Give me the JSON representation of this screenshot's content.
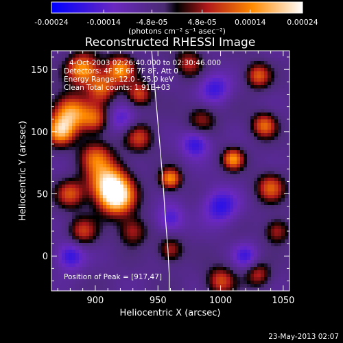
{
  "chart_data": {
    "type": "heatmap",
    "title": "Reconstructed RHESSI Image",
    "xlabel": "Heliocentric X (arcsec)",
    "ylabel": "Heliocentric Y (arcsec)",
    "xlim": [
      865,
      1055
    ],
    "ylim": [
      -28,
      165
    ],
    "x_ticks": [
      900,
      950,
      1000,
      1050
    ],
    "y_ticks": [
      0,
      50,
      100,
      150
    ],
    "colorbar": {
      "vmin": -0.00024,
      "vmax": 0.00024,
      "ticks": [
        "-0.00024",
        "-0.00014",
        "-4.8e-05",
        "4.8e-05",
        "0.00014",
        "0.00024"
      ],
      "tick_values": [
        -0.00024,
        -0.00014,
        -4.8e-05,
        4.8e-05,
        0.00014,
        0.00024
      ],
      "units_label": "(photons cm⁻² s⁻¹ asec⁻²)",
      "colormap": [
        "#0000ff",
        "#6a28c0",
        "#4a2a72",
        "#000000",
        "#b0181a",
        "#ff8a00",
        "#ffffff"
      ]
    },
    "annotations": {
      "time": "4-Oct-2003 02:26:40.000 to 02:30:46.000",
      "detectors": "Detectors: 4F 5F 6F 7F 8F, Att 0",
      "energy": "Energy Range: 12.0 - 25.0 keV",
      "method": "Clean    Total counts: 1.91E+03",
      "peak": "Position of Peak = [917,47]"
    },
    "limb": {
      "x": [
        945,
        948,
        951,
        954,
        956,
        958,
        959,
        959
      ],
      "y": [
        165,
        130,
        95,
        60,
        30,
        5,
        -15,
        -28
      ]
    },
    "sources": [
      {
        "x": 917,
        "y": 47,
        "amp": 1.0,
        "sigma": 10
      },
      {
        "x": 910,
        "y": 60,
        "amp": 0.85,
        "sigma": 11
      },
      {
        "x": 900,
        "y": 80,
        "amp": 0.55,
        "sigma": 9
      },
      {
        "x": 880,
        "y": 115,
        "amp": 0.85,
        "sigma": 10
      },
      {
        "x": 872,
        "y": 100,
        "amp": 0.75,
        "sigma": 8
      },
      {
        "x": 890,
        "y": 150,
        "amp": 0.8,
        "sigma": 9
      },
      {
        "x": 920,
        "y": 150,
        "amp": 0.75,
        "sigma": 8
      },
      {
        "x": 905,
        "y": 135,
        "amp": 0.6,
        "sigma": 8
      },
      {
        "x": 935,
        "y": 130,
        "amp": 0.55,
        "sigma": 7
      },
      {
        "x": 900,
        "y": 110,
        "amp": 0.55,
        "sigma": 8
      },
      {
        "x": 935,
        "y": 95,
        "amp": 0.5,
        "sigma": 8
      },
      {
        "x": 880,
        "y": 50,
        "amp": 0.55,
        "sigma": 8
      },
      {
        "x": 890,
        "y": 20,
        "amp": 0.5,
        "sigma": 8
      },
      {
        "x": 930,
        "y": 20,
        "amp": 0.45,
        "sigma": 8
      },
      {
        "x": 960,
        "y": 62,
        "amp": 0.75,
        "sigma": 6
      },
      {
        "x": 1010,
        "y": 78,
        "amp": 0.75,
        "sigma": 6
      },
      {
        "x": 1035,
        "y": 105,
        "amp": 0.65,
        "sigma": 7
      },
      {
        "x": 1040,
        "y": 55,
        "amp": 0.6,
        "sigma": 8
      },
      {
        "x": 1030,
        "y": 145,
        "amp": 0.6,
        "sigma": 7
      },
      {
        "x": 1045,
        "y": 20,
        "amp": 0.45,
        "sigma": 7
      },
      {
        "x": 1000,
        "y": -20,
        "amp": 0.55,
        "sigma": 8
      },
      {
        "x": 1030,
        "y": -15,
        "amp": 0.45,
        "sigma": 7
      },
      {
        "x": 960,
        "y": 5,
        "amp": 0.45,
        "sigma": 7
      },
      {
        "x": 985,
        "y": 110,
        "amp": 0.4,
        "sigma": 8
      },
      {
        "x": 975,
        "y": 155,
        "amp": 0.45,
        "sigma": 8
      },
      {
        "x": 920,
        "y": 110,
        "amp": -0.35,
        "sigma": 8
      },
      {
        "x": 980,
        "y": 90,
        "amp": -0.5,
        "sigma": 8
      },
      {
        "x": 1000,
        "y": 40,
        "amp": -0.5,
        "sigma": 10
      },
      {
        "x": 880,
        "y": 0,
        "amp": -0.5,
        "sigma": 8
      },
      {
        "x": 995,
        "y": 135,
        "amp": -0.45,
        "sigma": 9
      },
      {
        "x": 960,
        "y": 30,
        "amp": -0.4,
        "sigma": 8
      },
      {
        "x": 1020,
        "y": 0,
        "amp": -0.4,
        "sigma": 7
      }
    ]
  },
  "footer": {
    "timestamp": "23-May-2013 02:07"
  }
}
